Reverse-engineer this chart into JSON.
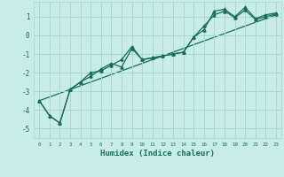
{
  "xlabel": "Humidex (Indice chaleur)",
  "bg_color": "#c8ece8",
  "grid_color": "#a8d8d0",
  "line_color": "#1a6b5e",
  "x": [
    0,
    1,
    2,
    3,
    4,
    5,
    6,
    7,
    8,
    9,
    10,
    11,
    12,
    13,
    14,
    15,
    16,
    17,
    18,
    19,
    20,
    21,
    22,
    23
  ],
  "line1": [
    -3.5,
    -4.3,
    -4.7,
    -2.9,
    -2.5,
    -2.2,
    -1.8,
    -1.5,
    -1.7,
    -0.7,
    -1.3,
    -1.2,
    -1.1,
    -1.0,
    -0.9,
    -0.1,
    0.3,
    1.3,
    1.4,
    1.0,
    1.5,
    0.9,
    1.1,
    1.2
  ],
  "line2": [
    -3.5,
    -4.3,
    -4.7,
    -2.9,
    -2.5,
    -2.0,
    -1.9,
    -1.6,
    -1.3,
    -0.6,
    -1.3,
    -1.2,
    -1.1,
    -1.0,
    -0.9,
    -0.1,
    0.5,
    1.1,
    1.3,
    0.95,
    1.35,
    0.85,
    1.0,
    1.15
  ],
  "line_straight": [
    -3.5,
    -3.3,
    -3.1,
    -2.9,
    -2.7,
    -2.5,
    -2.3,
    -2.1,
    -1.9,
    -1.7,
    -1.5,
    -1.3,
    -1.1,
    -0.9,
    -0.7,
    -0.5,
    -0.3,
    -0.1,
    0.1,
    0.3,
    0.5,
    0.7,
    0.9,
    1.1
  ],
  "ylim": [
    -5.5,
    1.8
  ],
  "xlim": [
    -0.5,
    23.5
  ],
  "yticks": [
    -5,
    -4,
    -3,
    -2,
    -1,
    0,
    1
  ],
  "xticks": [
    0,
    1,
    2,
    3,
    4,
    5,
    6,
    7,
    8,
    9,
    10,
    11,
    12,
    13,
    14,
    15,
    16,
    17,
    18,
    19,
    20,
    21,
    22,
    23
  ],
  "xlabel_fontsize": 6.5,
  "ytick_fontsize": 5.5,
  "xtick_fontsize": 4.2
}
